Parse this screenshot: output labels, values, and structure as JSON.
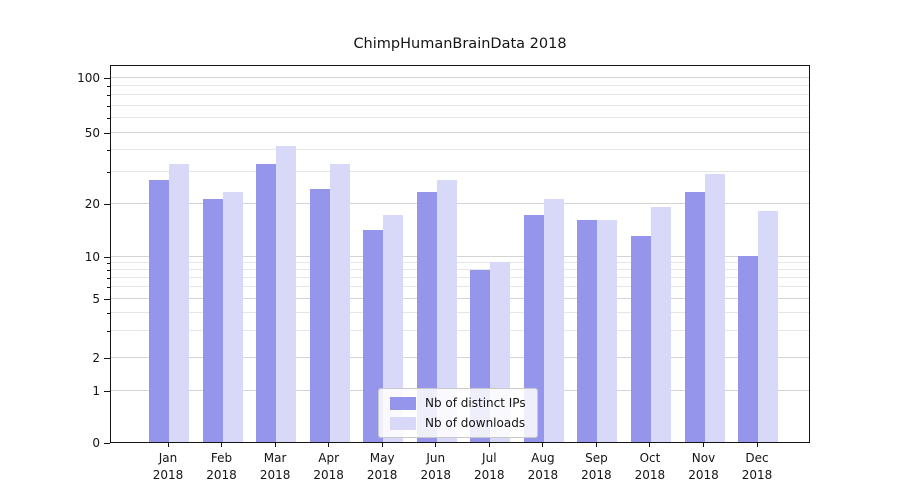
{
  "chart_data": {
    "type": "bar",
    "title": "ChimpHumanBrainData 2018",
    "categories": [
      "Jan 2018",
      "Feb 2018",
      "Mar 2018",
      "Apr 2018",
      "May 2018",
      "Jun 2018",
      "Jul 2018",
      "Aug 2018",
      "Sep 2018",
      "Oct 2018",
      "Nov 2018",
      "Dec 2018"
    ],
    "series": [
      {
        "name": "Nb of distinct IPs",
        "color": "#9595ec",
        "values": [
          27,
          21,
          33,
          24,
          14,
          23,
          8,
          17,
          16,
          13,
          23,
          10
        ]
      },
      {
        "name": "Nb of downloads",
        "color": "#d8d8f8",
        "values": [
          33,
          23,
          42,
          33,
          17,
          27,
          9,
          21,
          16,
          19,
          29,
          18
        ]
      }
    ],
    "xlabel": "",
    "ylabel": "",
    "yscale": "symlog",
    "y_ticks": [
      0,
      1,
      2,
      5,
      10,
      20,
      50,
      100
    ],
    "ylim": [
      0,
      120
    ],
    "grid": true,
    "legend_position": "lower center"
  },
  "colors": {
    "grid_major": "#d4d4d4",
    "grid_minor": "#e6e6e6",
    "axis": "#141414"
  }
}
